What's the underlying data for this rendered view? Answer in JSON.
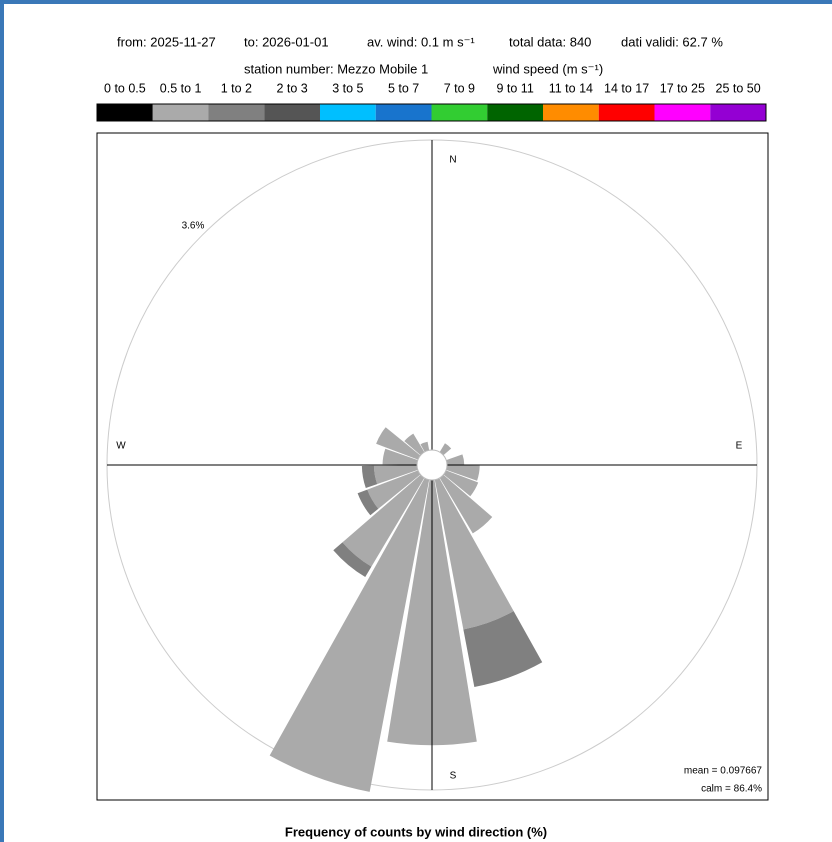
{
  "chart_data": {
    "type": "windrose",
    "title": "Frequency of counts by wind direction (%)",
    "header": [
      "from: 2025-11-27",
      "to: 2026-01-01",
      "av. wind:  0.1 m s⁻¹",
      "total data: 840",
      "dati validi: 62.7 %"
    ],
    "subheader": [
      "station number:  Mezzo Mobile 1",
      "wind speed (m s⁻¹)"
    ],
    "compass": [
      "N",
      "E",
      "S",
      "W"
    ],
    "annotations": [
      "mean = 0.097667",
      "calm = 86.4%"
    ],
    "annotation_color": "#4aa84a",
    "rlim": [
      0,
      3.6
    ],
    "rticks": [
      {
        "value": 3.6,
        "label": "3.6%"
      }
    ],
    "directions": [
      0,
      20,
      40,
      60,
      80,
      100,
      120,
      140,
      160,
      180,
      200,
      220,
      240,
      260,
      280,
      300,
      320,
      340
    ],
    "series": [
      {
        "name": "0 to 0.5",
        "color": "#000000",
        "values": [
          0,
          0,
          0,
          0,
          0,
          0,
          0,
          0,
          0,
          0,
          0,
          0,
          0,
          0,
          0,
          0,
          0,
          0
        ]
      },
      {
        "name": "0.5 to 1",
        "color": "#aaaaaa",
        "values": [
          0,
          0,
          0.12,
          0,
          0.2,
          0.38,
          0.4,
          0.75,
          1.77,
          3.08,
          3.69,
          1.2,
          0.63,
          0.5,
          0.4,
          0.52,
          0.25,
          0.1
        ]
      },
      {
        "name": "1 to 2",
        "color": "#808080",
        "values": [
          0,
          0,
          0,
          0,
          0,
          0,
          0,
          0,
          0.68,
          0,
          0,
          0.14,
          0.12,
          0.14,
          0,
          0,
          0,
          0
        ]
      },
      {
        "name": "2 to 3",
        "color": "#555555",
        "values": [
          0,
          0,
          0,
          0,
          0,
          0,
          0,
          0,
          0,
          0,
          0,
          0,
          0,
          0,
          0,
          0,
          0,
          0
        ]
      },
      {
        "name": "3 to 5",
        "color": "#00bfff",
        "values": [
          0,
          0,
          0,
          0,
          0,
          0,
          0,
          0,
          0,
          0,
          0,
          0,
          0,
          0,
          0,
          0,
          0,
          0
        ]
      },
      {
        "name": "5 to 7",
        "color": "#1874cd",
        "values": [
          0,
          0,
          0,
          0,
          0,
          0,
          0,
          0,
          0,
          0,
          0,
          0,
          0,
          0,
          0,
          0,
          0,
          0
        ]
      },
      {
        "name": "7 to 9",
        "color": "#32cd32",
        "values": [
          0,
          0,
          0,
          0,
          0,
          0,
          0,
          0,
          0,
          0,
          0,
          0,
          0,
          0,
          0,
          0,
          0,
          0
        ]
      },
      {
        "name": "9 to 11",
        "color": "#006400",
        "values": [
          0,
          0,
          0,
          0,
          0,
          0,
          0,
          0,
          0,
          0,
          0,
          0,
          0,
          0,
          0,
          0,
          0,
          0
        ]
      },
      {
        "name": "11 to 14",
        "color": "#ff8c00",
        "values": [
          0,
          0,
          0,
          0,
          0,
          0,
          0,
          0,
          0,
          0,
          0,
          0,
          0,
          0,
          0,
          0,
          0,
          0
        ]
      },
      {
        "name": "14 to 17",
        "color": "#ff0000",
        "values": [
          0,
          0,
          0,
          0,
          0,
          0,
          0,
          0,
          0,
          0,
          0,
          0,
          0,
          0,
          0,
          0,
          0,
          0
        ]
      },
      {
        "name": "17 to 25",
        "color": "#ff00ff",
        "values": [
          0,
          0,
          0,
          0,
          0,
          0,
          0,
          0,
          0,
          0,
          0,
          0,
          0,
          0,
          0,
          0,
          0,
          0
        ]
      },
      {
        "name": "25 to 50",
        "color": "#9400d3",
        "values": [
          0,
          0,
          0,
          0,
          0,
          0,
          0,
          0,
          0,
          0,
          0,
          0,
          0,
          0,
          0,
          0,
          0,
          0
        ]
      }
    ]
  }
}
